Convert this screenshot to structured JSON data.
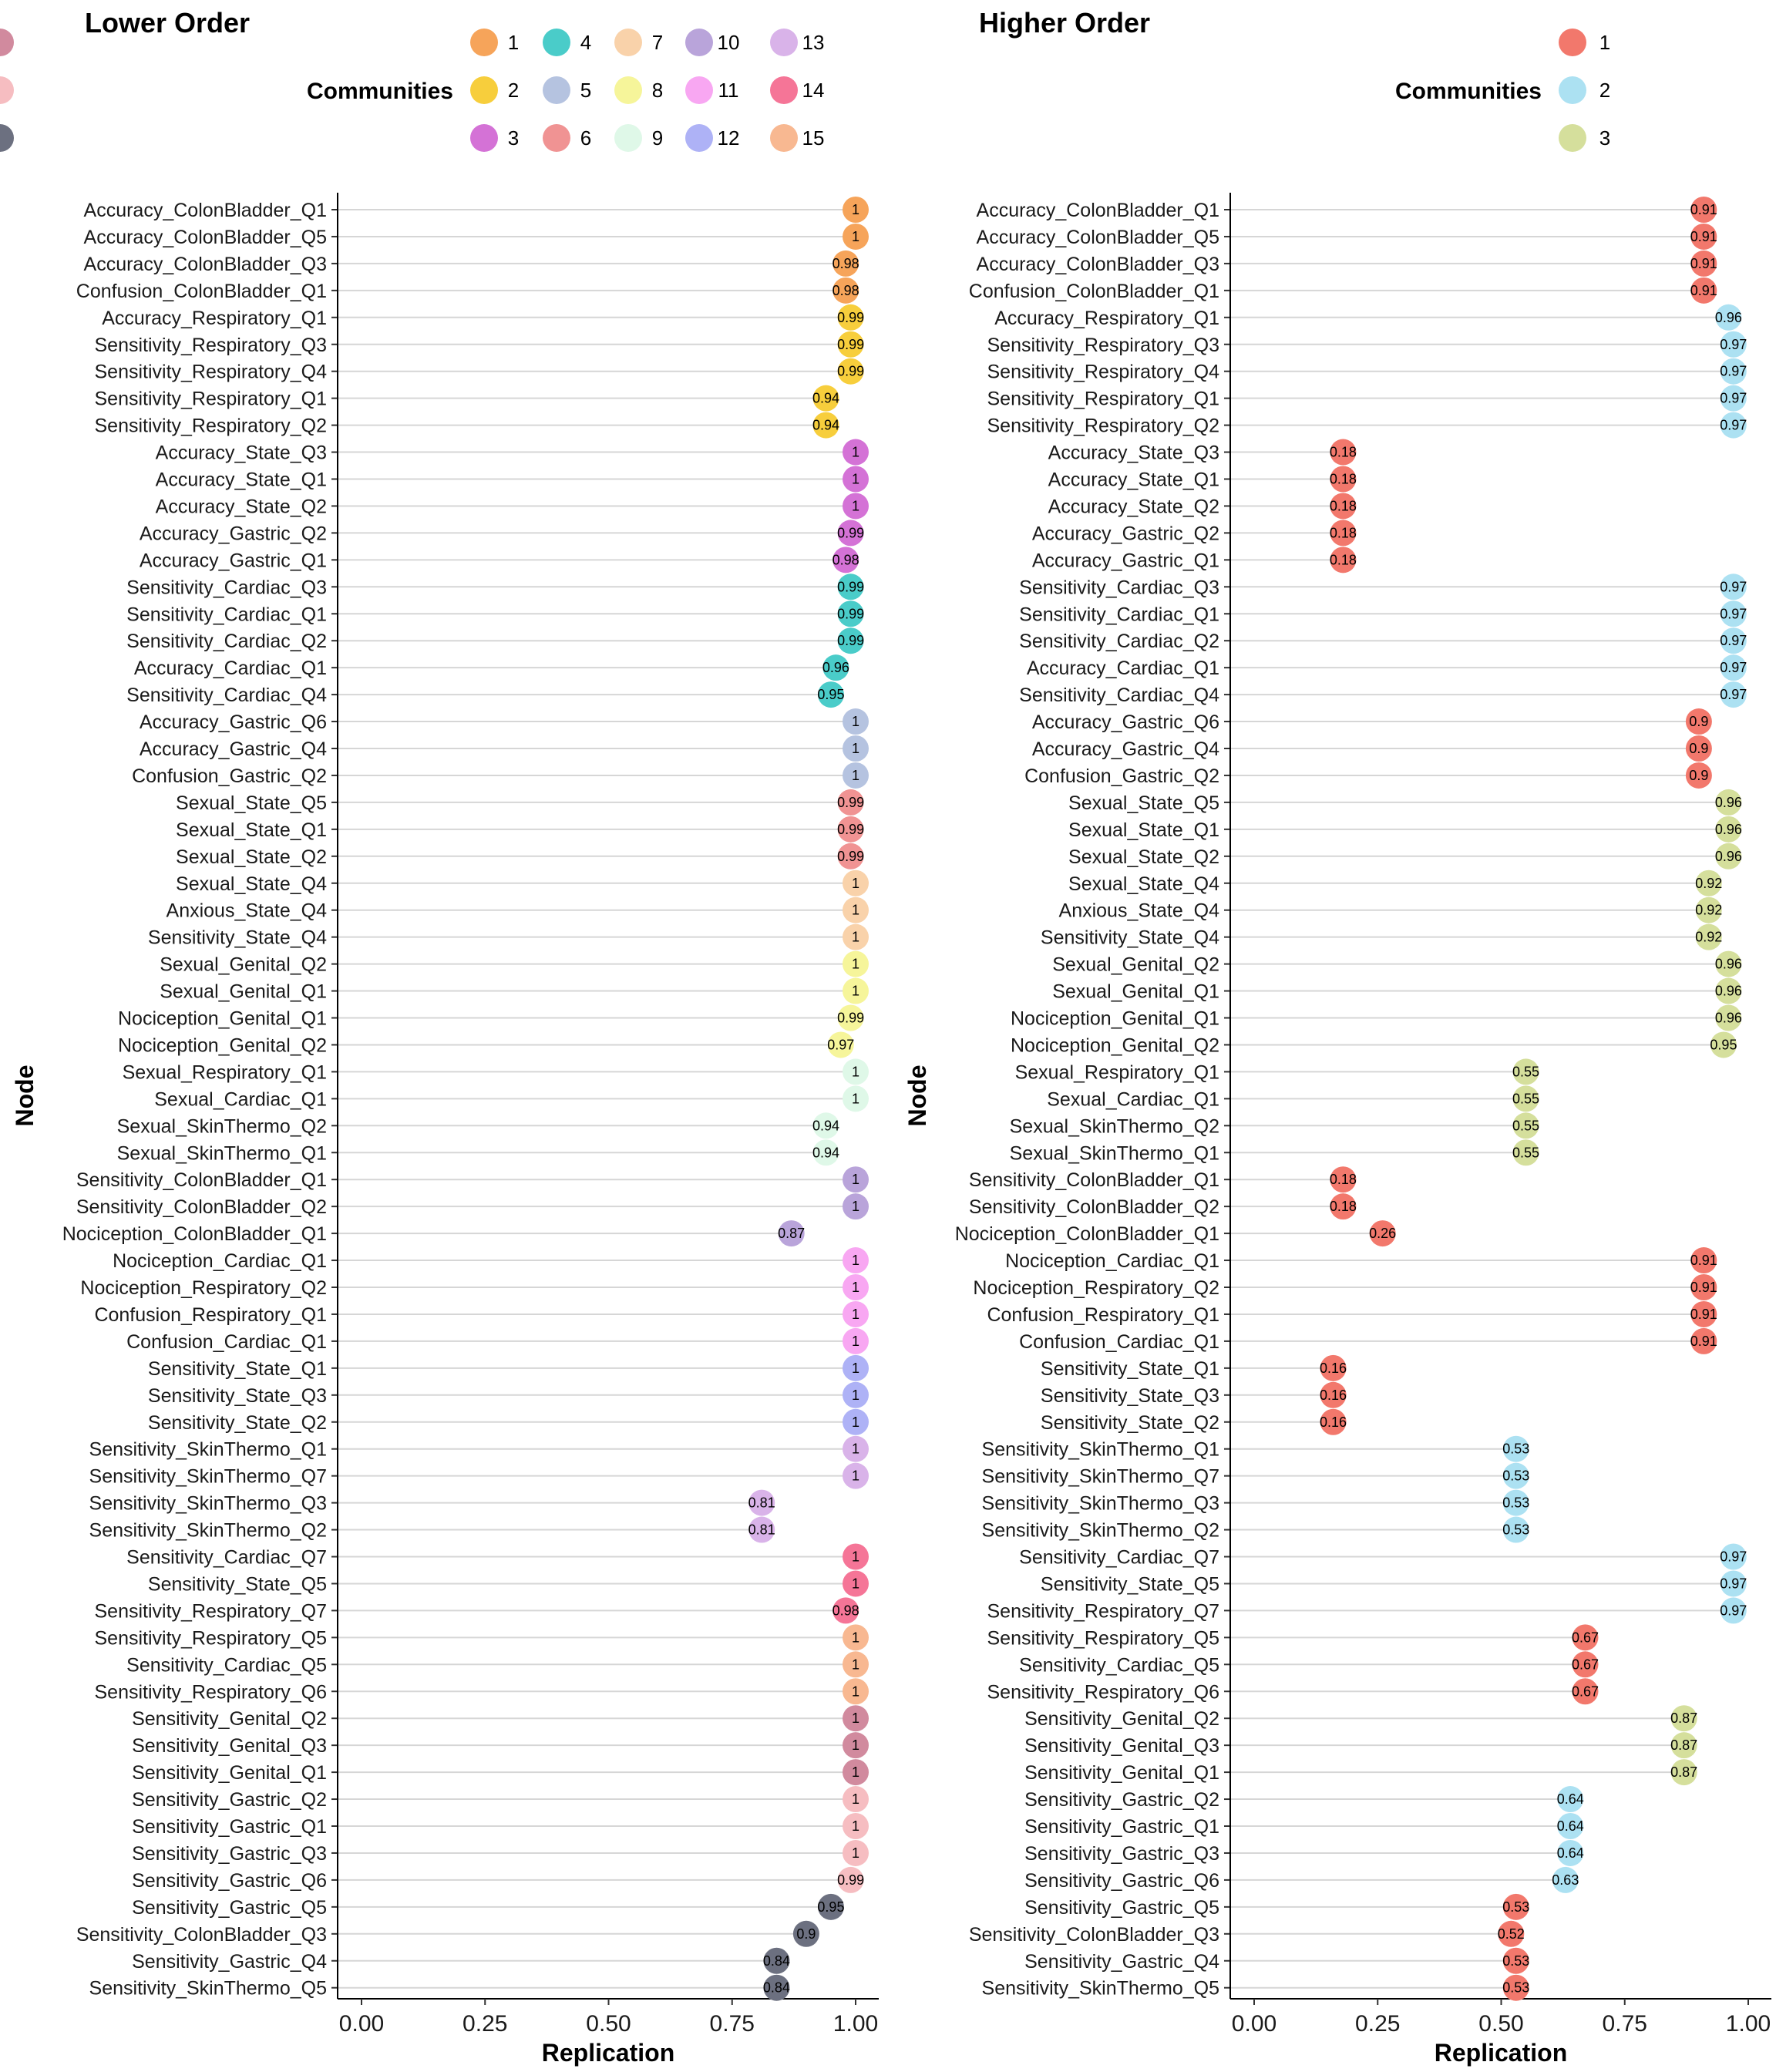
{
  "chart_data": [
    {
      "type": "lollipop",
      "title": "Lower Order",
      "legend_title": "Communities",
      "xlabel": "Replication",
      "ylabel": "Node",
      "xlim": [
        0,
        1
      ],
      "xticks": [
        "0.00",
        "0.25",
        "0.50",
        "0.75",
        "1.00"
      ],
      "communities": [
        {
          "label": "1",
          "color": "#F6A45A"
        },
        {
          "label": "2",
          "color": "#F7CE3C"
        },
        {
          "label": "3",
          "color": "#D472D6"
        },
        {
          "label": "4",
          "color": "#4ACCC9"
        },
        {
          "label": "5",
          "color": "#B5C3E0"
        },
        {
          "label": "6",
          "color": "#F09393"
        },
        {
          "label": "7",
          "color": "#F9D2AA"
        },
        {
          "label": "8",
          "color": "#F6F59A"
        },
        {
          "label": "9",
          "color": "#DFF8E8"
        },
        {
          "label": "10",
          "color": "#B9A4DA"
        },
        {
          "label": "11",
          "color": "#F8A7F2"
        },
        {
          "label": "12",
          "color": "#AEB2F6"
        },
        {
          "label": "13",
          "color": "#D9B3E9"
        },
        {
          "label": "14",
          "color": "#F57597"
        },
        {
          "label": "15",
          "color": "#F8B891"
        },
        {
          "label": "",
          "color": "#D18A9E"
        },
        {
          "label": "",
          "color": "#F6BDC1"
        },
        {
          "label": "",
          "color": "#6C7080"
        }
      ],
      "nodes": [
        "Accuracy_ColonBladder_Q1",
        "Accuracy_ColonBladder_Q5",
        "Accuracy_ColonBladder_Q3",
        "Confusion_ColonBladder_Q1",
        "Accuracy_Respiratory_Q1",
        "Sensitivity_Respiratory_Q3",
        "Sensitivity_Respiratory_Q4",
        "Sensitivity_Respiratory_Q1",
        "Sensitivity_Respiratory_Q2",
        "Accuracy_State_Q3",
        "Accuracy_State_Q1",
        "Accuracy_State_Q2",
        "Accuracy_Gastric_Q2",
        "Accuracy_Gastric_Q1",
        "Sensitivity_Cardiac_Q3",
        "Sensitivity_Cardiac_Q1",
        "Sensitivity_Cardiac_Q2",
        "Accuracy_Cardiac_Q1",
        "Sensitivity_Cardiac_Q4",
        "Accuracy_Gastric_Q6",
        "Accuracy_Gastric_Q4",
        "Confusion_Gastric_Q2",
        "Sexual_State_Q5",
        "Sexual_State_Q1",
        "Sexual_State_Q2",
        "Sexual_State_Q4",
        "Anxious_State_Q4",
        "Sensitivity_State_Q4",
        "Sexual_Genital_Q2",
        "Sexual_Genital_Q1",
        "Nociception_Genital_Q1",
        "Nociception_Genital_Q2",
        "Sexual_Respiratory_Q1",
        "Sexual_Cardiac_Q1",
        "Sexual_SkinThermo_Q2",
        "Sexual_SkinThermo_Q1",
        "Sensitivity_ColonBladder_Q1",
        "Sensitivity_ColonBladder_Q2",
        "Nociception_ColonBladder_Q1",
        "Nociception_Cardiac_Q1",
        "Nociception_Respiratory_Q2",
        "Confusion_Respiratory_Q1",
        "Confusion_Cardiac_Q1",
        "Sensitivity_State_Q1",
        "Sensitivity_State_Q3",
        "Sensitivity_State_Q2",
        "Sensitivity_SkinThermo_Q1",
        "Sensitivity_SkinThermo_Q7",
        "Sensitivity_SkinThermo_Q3",
        "Sensitivity_SkinThermo_Q2",
        "Sensitivity_Cardiac_Q7",
        "Sensitivity_State_Q5",
        "Sensitivity_Respiratory_Q7",
        "Sensitivity_Respiratory_Q5",
        "Sensitivity_Cardiac_Q5",
        "Sensitivity_Respiratory_Q6",
        "Sensitivity_Genital_Q2",
        "Sensitivity_Genital_Q3",
        "Sensitivity_Genital_Q1",
        "Sensitivity_Gastric_Q2",
        "Sensitivity_Gastric_Q1",
        "Sensitivity_Gastric_Q3",
        "Sensitivity_Gastric_Q6",
        "Sensitivity_Gastric_Q5",
        "Sensitivity_ColonBladder_Q3",
        "Sensitivity_Gastric_Q4",
        "Sensitivity_SkinThermo_Q5"
      ],
      "values": [
        1,
        1,
        0.98,
        0.98,
        0.99,
        0.99,
        0.99,
        0.94,
        0.94,
        1,
        1,
        1,
        0.99,
        0.98,
        0.99,
        0.99,
        0.99,
        0.96,
        0.95,
        1,
        1,
        1,
        0.99,
        0.99,
        0.99,
        1,
        1,
        1,
        1,
        1,
        0.99,
        0.97,
        1,
        1,
        0.94,
        0.94,
        1,
        1,
        0.87,
        1,
        1,
        1,
        1,
        1,
        1,
        1,
        1,
        1,
        0.81,
        0.81,
        1,
        1,
        0.98,
        1,
        1,
        1,
        1,
        1,
        1,
        1,
        1,
        1,
        0.99,
        0.95,
        0.9,
        0.84,
        0.84
      ],
      "value_labels": [
        "1",
        "1",
        "0.98",
        "0.98",
        "0.99",
        "0.99",
        "0.99",
        "0.94",
        "0.94",
        "1",
        "1",
        "1",
        "0.99",
        "0.98",
        "0.99",
        "0.99",
        "0.99",
        "0.96",
        "0.95",
        "1",
        "1",
        "1",
        "0.99",
        "0.99",
        "0.99",
        "1",
        "1",
        "1",
        "1",
        "1",
        "0.99",
        "0.97",
        "1",
        "1",
        "0.94",
        "0.94",
        "1",
        "1",
        "0.87",
        "1",
        "1",
        "1",
        "1",
        "1",
        "1",
        "1",
        "1",
        "1",
        "0.81",
        "0.81",
        "1",
        "1",
        "0.98",
        "1",
        "1",
        "1",
        "1",
        "1",
        "1",
        "1",
        "1",
        "1",
        "0.99",
        "0.95",
        "0.9",
        "0.84",
        "0.84"
      ],
      "community_index": [
        0,
        0,
        0,
        0,
        1,
        1,
        1,
        1,
        1,
        2,
        2,
        2,
        2,
        2,
        3,
        3,
        3,
        3,
        3,
        4,
        4,
        4,
        5,
        5,
        5,
        6,
        6,
        6,
        7,
        7,
        7,
        7,
        8,
        8,
        8,
        8,
        9,
        9,
        9,
        10,
        10,
        10,
        10,
        11,
        11,
        11,
        12,
        12,
        12,
        12,
        13,
        13,
        13,
        14,
        14,
        14,
        15,
        15,
        15,
        16,
        16,
        16,
        16,
        17,
        17,
        17,
        17
      ]
    },
    {
      "type": "lollipop",
      "title": "Higher Order",
      "legend_title": "Communities",
      "xlabel": "Replication",
      "ylabel": "Node",
      "xlim": [
        0,
        1
      ],
      "xticks": [
        "0.00",
        "0.25",
        "0.50",
        "0.75",
        "1.00"
      ],
      "communities": [
        {
          "label": "1",
          "color": "#F2786C"
        },
        {
          "label": "2",
          "color": "#ACE1F2"
        },
        {
          "label": "3",
          "color": "#D5DF9C"
        }
      ],
      "nodes": [
        "Accuracy_ColonBladder_Q1",
        "Accuracy_ColonBladder_Q5",
        "Accuracy_ColonBladder_Q3",
        "Confusion_ColonBladder_Q1",
        "Accuracy_Respiratory_Q1",
        "Sensitivity_Respiratory_Q3",
        "Sensitivity_Respiratory_Q4",
        "Sensitivity_Respiratory_Q1",
        "Sensitivity_Respiratory_Q2",
        "Accuracy_State_Q3",
        "Accuracy_State_Q1",
        "Accuracy_State_Q2",
        "Accuracy_Gastric_Q2",
        "Accuracy_Gastric_Q1",
        "Sensitivity_Cardiac_Q3",
        "Sensitivity_Cardiac_Q1",
        "Sensitivity_Cardiac_Q2",
        "Accuracy_Cardiac_Q1",
        "Sensitivity_Cardiac_Q4",
        "Accuracy_Gastric_Q6",
        "Accuracy_Gastric_Q4",
        "Confusion_Gastric_Q2",
        "Sexual_State_Q5",
        "Sexual_State_Q1",
        "Sexual_State_Q2",
        "Sexual_State_Q4",
        "Anxious_State_Q4",
        "Sensitivity_State_Q4",
        "Sexual_Genital_Q2",
        "Sexual_Genital_Q1",
        "Nociception_Genital_Q1",
        "Nociception_Genital_Q2",
        "Sexual_Respiratory_Q1",
        "Sexual_Cardiac_Q1",
        "Sexual_SkinThermo_Q2",
        "Sexual_SkinThermo_Q1",
        "Sensitivity_ColonBladder_Q1",
        "Sensitivity_ColonBladder_Q2",
        "Nociception_ColonBladder_Q1",
        "Nociception_Cardiac_Q1",
        "Nociception_Respiratory_Q2",
        "Confusion_Respiratory_Q1",
        "Confusion_Cardiac_Q1",
        "Sensitivity_State_Q1",
        "Sensitivity_State_Q3",
        "Sensitivity_State_Q2",
        "Sensitivity_SkinThermo_Q1",
        "Sensitivity_SkinThermo_Q7",
        "Sensitivity_SkinThermo_Q3",
        "Sensitivity_SkinThermo_Q2",
        "Sensitivity_Cardiac_Q7",
        "Sensitivity_State_Q5",
        "Sensitivity_Respiratory_Q7",
        "Sensitivity_Respiratory_Q5",
        "Sensitivity_Cardiac_Q5",
        "Sensitivity_Respiratory_Q6",
        "Sensitivity_Genital_Q2",
        "Sensitivity_Genital_Q3",
        "Sensitivity_Genital_Q1",
        "Sensitivity_Gastric_Q2",
        "Sensitivity_Gastric_Q1",
        "Sensitivity_Gastric_Q3",
        "Sensitivity_Gastric_Q6",
        "Sensitivity_Gastric_Q5",
        "Sensitivity_ColonBladder_Q3",
        "Sensitivity_Gastric_Q4",
        "Sensitivity_SkinThermo_Q5"
      ],
      "values": [
        0.91,
        0.91,
        0.91,
        0.91,
        0.96,
        0.97,
        0.97,
        0.97,
        0.97,
        0.18,
        0.18,
        0.18,
        0.18,
        0.18,
        0.97,
        0.97,
        0.97,
        0.97,
        0.97,
        0.9,
        0.9,
        0.9,
        0.96,
        0.96,
        0.96,
        0.92,
        0.92,
        0.92,
        0.96,
        0.96,
        0.96,
        0.95,
        0.55,
        0.55,
        0.55,
        0.55,
        0.18,
        0.18,
        0.26,
        0.91,
        0.91,
        0.91,
        0.91,
        0.16,
        0.16,
        0.16,
        0.53,
        0.53,
        0.53,
        0.53,
        0.97,
        0.97,
        0.97,
        0.67,
        0.67,
        0.67,
        0.87,
        0.87,
        0.87,
        0.64,
        0.64,
        0.64,
        0.63,
        0.53,
        0.52,
        0.53,
        0.53
      ],
      "value_labels": [
        "0.91",
        "0.91",
        "0.91",
        "0.91",
        "0.96",
        "0.97",
        "0.97",
        "0.97",
        "0.97",
        "0.18",
        "0.18",
        "0.18",
        "0.18",
        "0.18",
        "0.97",
        "0.97",
        "0.97",
        "0.97",
        "0.97",
        "0.9",
        "0.9",
        "0.9",
        "0.96",
        "0.96",
        "0.96",
        "0.92",
        "0.92",
        "0.92",
        "0.96",
        "0.96",
        "0.96",
        "0.95",
        "0.55",
        "0.55",
        "0.55",
        "0.55",
        "0.18",
        "0.18",
        "0.26",
        "0.91",
        "0.91",
        "0.91",
        "0.91",
        "0.16",
        "0.16",
        "0.16",
        "0.53",
        "0.53",
        "0.53",
        "0.53",
        "0.97",
        "0.97",
        "0.97",
        "0.67",
        "0.67",
        "0.67",
        "0.87",
        "0.87",
        "0.87",
        "0.64",
        "0.64",
        "0.64",
        "0.63",
        "0.53",
        "0.52",
        "0.53",
        "0.53"
      ],
      "community_index": [
        0,
        0,
        0,
        0,
        1,
        1,
        1,
        1,
        1,
        0,
        0,
        0,
        0,
        0,
        1,
        1,
        1,
        1,
        1,
        0,
        0,
        0,
        2,
        2,
        2,
        2,
        2,
        2,
        2,
        2,
        2,
        2,
        2,
        2,
        2,
        2,
        0,
        0,
        0,
        0,
        0,
        0,
        0,
        0,
        0,
        0,
        1,
        1,
        1,
        1,
        1,
        1,
        1,
        0,
        0,
        0,
        2,
        2,
        2,
        1,
        1,
        1,
        1,
        0,
        0,
        0,
        0
      ]
    }
  ]
}
